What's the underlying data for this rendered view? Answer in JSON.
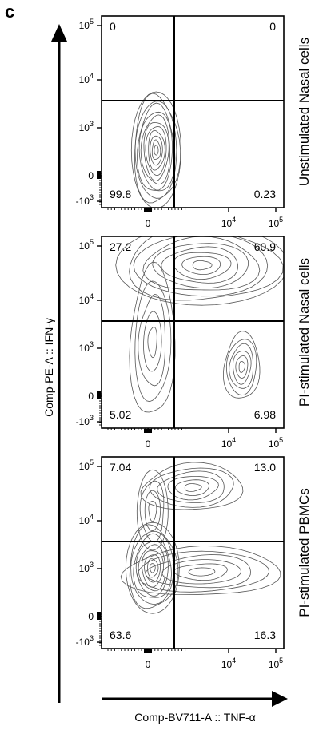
{
  "figure": {
    "panel_letter": "c",
    "y_axis_title": "Comp-PE-A :: IFN-γ",
    "x_axis_title": "Comp-BV711-A :: TNF-α"
  },
  "chart_data": [
    {
      "type": "contour",
      "title": "Unstimulated Nasal cells",
      "quadrant_percentages": {
        "top_left": "0",
        "top_right": "0",
        "bottom_left": "99.8",
        "bottom_right": "0.23"
      },
      "x_ticks": [
        "0",
        "10^4",
        "10^5"
      ],
      "y_ticks": [
        "-10^3",
        "0",
        "10^3",
        "10^4",
        "10^5"
      ],
      "populations": [
        {
          "x": 0.3,
          "y": 0.3,
          "rx": 0.13,
          "ry": 0.32,
          "levels": 12
        }
      ]
    },
    {
      "type": "contour",
      "title": "PI-stimulated Nasal cells",
      "quadrant_percentages": {
        "top_left": "27.2",
        "top_right": "60.9",
        "bottom_left": "5.02",
        "bottom_right": "6.98"
      },
      "x_ticks": [
        "0",
        "10^4",
        "10^5"
      ],
      "y_ticks": [
        "-10^3",
        "0",
        "10^3",
        "10^4",
        "10^5"
      ],
      "populations": [
        {
          "x": 0.55,
          "y": 0.85,
          "rx": 0.45,
          "ry": 0.22,
          "levels": 9
        },
        {
          "x": 0.28,
          "y": 0.45,
          "rx": 0.12,
          "ry": 0.4,
          "levels": 5
        },
        {
          "x": 0.77,
          "y": 0.32,
          "rx": 0.1,
          "ry": 0.17,
          "levels": 6
        }
      ]
    },
    {
      "type": "contour",
      "title": "PI-stimulated PBMCs",
      "quadrant_percentages": {
        "top_left": "7.04",
        "top_right": "13.0",
        "bottom_left": "63.6",
        "bottom_right": "16.3"
      },
      "x_ticks": [
        "0",
        "10^4",
        "10^5"
      ],
      "y_ticks": [
        "-10^3",
        "0",
        "10^3",
        "10^4",
        "10^5"
      ],
      "populations": [
        {
          "x": 0.28,
          "y": 0.42,
          "rx": 0.14,
          "ry": 0.25,
          "levels": 10
        },
        {
          "x": 0.55,
          "y": 0.4,
          "rx": 0.42,
          "ry": 0.13,
          "levels": 6
        },
        {
          "x": 0.5,
          "y": 0.84,
          "rx": 0.28,
          "ry": 0.12,
          "levels": 6
        },
        {
          "x": 0.28,
          "y": 0.72,
          "rx": 0.09,
          "ry": 0.2,
          "levels": 4
        }
      ]
    }
  ]
}
